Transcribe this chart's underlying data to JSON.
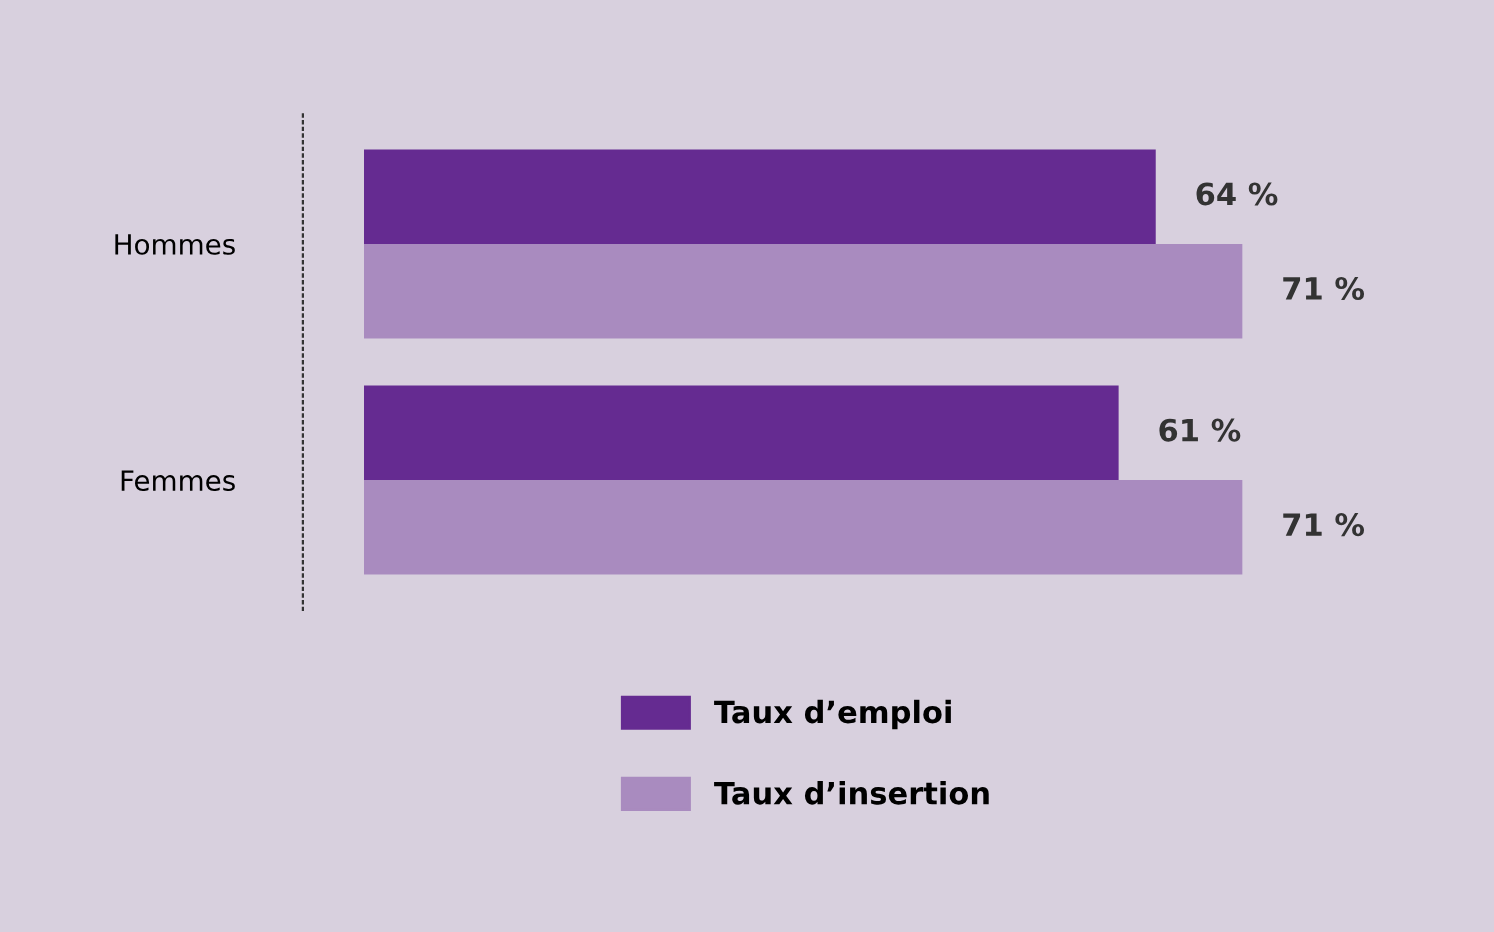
{
  "chart_data": {
    "type": "bar",
    "orientation": "horizontal",
    "categories": [
      "Hommes",
      "Femmes"
    ],
    "series": [
      {
        "name": "Taux d’emploi",
        "color": "#652b91",
        "values": [
          64,
          61
        ],
        "value_labels": [
          "64 %",
          "61 %"
        ]
      },
      {
        "name": "Taux d’insertion",
        "color": "#a98bbf",
        "values": [
          71,
          71
        ],
        "value_labels": [
          "71 %",
          "71 %"
        ]
      }
    ],
    "legend": "bottom"
  }
}
